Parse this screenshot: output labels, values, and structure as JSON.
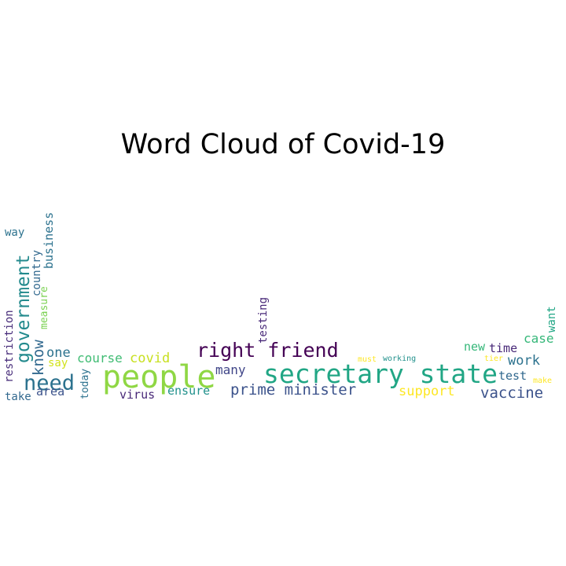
{
  "title": "Word Cloud of Covid-19",
  "words": [
    {
      "text": "people",
      "color": "#8fd744"
    },
    {
      "text": "secretary state",
      "color": "#21a685"
    },
    {
      "text": "right friend",
      "color": "#440154"
    },
    {
      "text": "need",
      "color": "#2c728e"
    },
    {
      "text": "government",
      "color": "#238a8d"
    },
    {
      "text": "prime minister",
      "color": "#3b528b"
    },
    {
      "text": "vaccine",
      "color": "#3b528b"
    },
    {
      "text": "support",
      "color": "#fde725"
    },
    {
      "text": "work",
      "color": "#2c728e"
    },
    {
      "text": "know",
      "color": "#31688e"
    },
    {
      "text": "one",
      "color": "#2c728e"
    },
    {
      "text": "course",
      "color": "#3fbc73"
    },
    {
      "text": "covid",
      "color": "#c8e020"
    },
    {
      "text": "many",
      "color": "#404688"
    },
    {
      "text": "ensure",
      "color": "#21918c"
    },
    {
      "text": "area",
      "color": "#3b528b"
    },
    {
      "text": "virus",
      "color": "#482878"
    },
    {
      "text": "case",
      "color": "#35b779"
    },
    {
      "text": "time",
      "color": "#482878"
    },
    {
      "text": "new",
      "color": "#35b779"
    },
    {
      "text": "test",
      "color": "#31688e"
    },
    {
      "text": "business",
      "color": "#2c728e"
    },
    {
      "text": "country",
      "color": "#31688e"
    },
    {
      "text": "restriction",
      "color": "#472c7a"
    },
    {
      "text": "measure",
      "color": "#7ad151"
    },
    {
      "text": "testing",
      "color": "#482878"
    },
    {
      "text": "today",
      "color": "#2c728e"
    },
    {
      "text": "say",
      "color": "#d2e21b"
    },
    {
      "text": "take",
      "color": "#31688e"
    },
    {
      "text": "way",
      "color": "#2c728e"
    },
    {
      "text": "want",
      "color": "#21a685"
    },
    {
      "text": "must",
      "color": "#fde725"
    },
    {
      "text": "working",
      "color": "#21918c"
    },
    {
      "text": "tier",
      "color": "#fde725"
    },
    {
      "text": "make",
      "color": "#fde725"
    }
  ]
}
